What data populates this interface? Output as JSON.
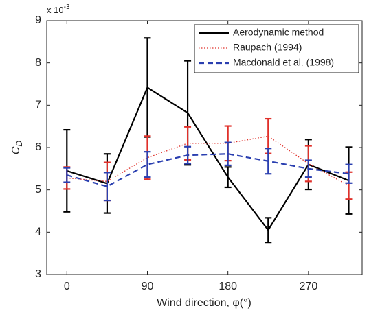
{
  "chart_data": {
    "type": "line",
    "x_label": "Wind direction, φ(°)",
    "y_label": {
      "text": "C",
      "subscript": "D"
    },
    "y_multiplier": {
      "text": "x 10",
      "exponent": "-3"
    },
    "x": [
      0,
      45,
      90,
      135,
      180,
      225,
      270,
      315
    ],
    "xlim": [
      -22.5,
      330
    ],
    "xticks": [
      0,
      90,
      180,
      270
    ],
    "ylim": [
      3,
      9
    ],
    "yticks": [
      3,
      4,
      5,
      6,
      7,
      8,
      9
    ],
    "legend": "upper right",
    "series": [
      {
        "name": "Aerodynamic method",
        "color": "#000000",
        "style": "solid",
        "width": 2.2,
        "values": [
          5.45,
          5.15,
          7.42,
          6.82,
          5.3,
          4.05,
          5.6,
          5.22
        ],
        "errors": [
          0.97,
          0.7,
          1.17,
          1.23,
          0.24,
          0.29,
          0.59,
          0.79
        ]
      },
      {
        "name": "Raupach (1994)",
        "color": "#e0302a",
        "style": "dotted",
        "width": 1.3,
        "values": [
          5.28,
          5.2,
          5.76,
          6.1,
          6.1,
          6.27,
          5.62,
          5.1
        ],
        "errors": [
          0.26,
          0.45,
          0.51,
          0.39,
          0.41,
          0.41,
          0.42,
          0.32
        ]
      },
      {
        "name": "Macdonald et al. (1998)",
        "color": "#2a3fb0",
        "style": "dashed",
        "width": 2.2,
        "values": [
          5.35,
          5.08,
          5.6,
          5.82,
          5.85,
          5.68,
          5.5,
          5.38
        ],
        "errors": [
          0.17,
          0.33,
          0.3,
          0.2,
          0.27,
          0.3,
          0.2,
          0.22
        ]
      }
    ]
  }
}
